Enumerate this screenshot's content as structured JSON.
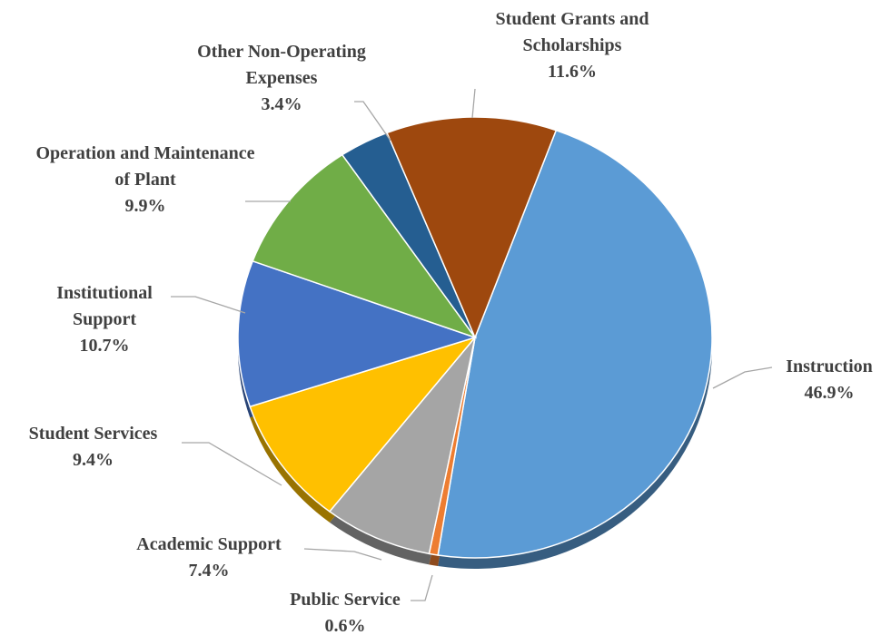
{
  "chart_data": {
    "type": "pie",
    "categories": [
      "Instruction",
      "Public Service",
      "Academic Support",
      "Student Services",
      "Institutional Support",
      "Operation and Maintenance of Plant",
      "Other Non-Operating Expenses",
      "Student Grants and Scholarships"
    ],
    "values": [
      46.9,
      0.6,
      7.4,
      9.4,
      10.7,
      9.9,
      3.4,
      11.6
    ],
    "value_labels": [
      "46.9%",
      "0.6%",
      "7.4%",
      "9.4%",
      "10.7%",
      "9.9%",
      "3.4%",
      "11.6%"
    ],
    "colors": [
      "#5b9bd5",
      "#ed7d31",
      "#a5a5a5",
      "#ffc000",
      "#4472c4",
      "#70ad47",
      "#255e91",
      "#9e480e"
    ]
  }
}
